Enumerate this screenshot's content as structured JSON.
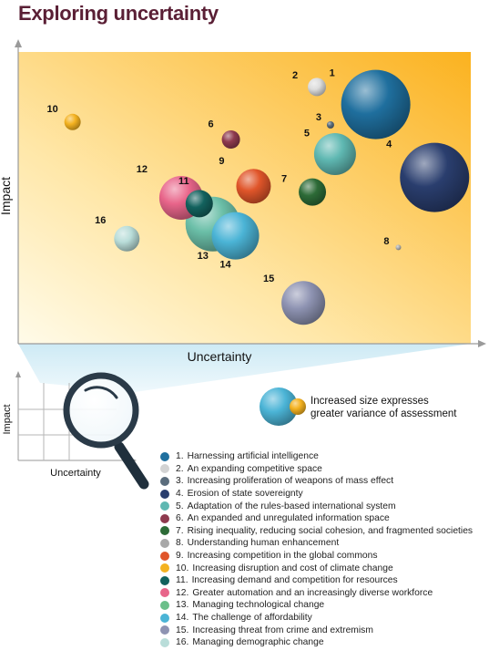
{
  "title": "Exploring uncertainty",
  "chart_data": {
    "type": "scatter",
    "title": "Exploring uncertainty",
    "xlabel": "Uncertainty",
    "ylabel": "Impact",
    "xlim": [
      0,
      100
    ],
    "ylim": [
      0,
      100
    ],
    "size_note": [
      "Increased size expresses",
      "greater variance of assessment"
    ],
    "inset_xlabel": "Uncertainty",
    "inset_ylabel": "Impact",
    "points": [
      {
        "id": "1",
        "label": "Harnessing artificial intelligence",
        "x": 79,
        "y": 82,
        "size": 38,
        "color": "#1f6f9e"
      },
      {
        "id": "2",
        "label": "An expanding competitive space",
        "x": 66,
        "y": 88,
        "size": 10,
        "color": "#dddddd"
      },
      {
        "id": "3",
        "label": "Increasing proliferation of weapons of mass effect",
        "x": 69,
        "y": 75,
        "size": 4,
        "color": "#5a6c7c"
      },
      {
        "id": "4",
        "label": "Erosion of state sovereignty",
        "x": 92,
        "y": 57,
        "size": 38,
        "color": "#2a3e6e"
      },
      {
        "id": "5",
        "label": "Adaptation of the rules-based international system",
        "x": 70,
        "y": 65,
        "size": 23,
        "color": "#5fb8b2"
      },
      {
        "id": "6",
        "label": "An expanded and unregulated information space",
        "x": 47,
        "y": 70,
        "size": 10,
        "color": "#8e3a4e"
      },
      {
        "id": "7",
        "label": "Rising inequality, reducing social cohesion, and fragmented societies",
        "x": 65,
        "y": 52,
        "size": 15,
        "color": "#2d6b37"
      },
      {
        "id": "8",
        "label": "Understanding human enhancement",
        "x": 84,
        "y": 33,
        "size": 3,
        "color": "#b0b0b0"
      },
      {
        "id": "9",
        "label": "Increasing competition in the global commons",
        "x": 52,
        "y": 54,
        "size": 19,
        "color": "#e0552a"
      },
      {
        "id": "10",
        "label": "Increasing disruption and cost of climate change",
        "x": 12,
        "y": 76,
        "size": 9,
        "color": "#f4b220"
      },
      {
        "id": "11",
        "label": "Increasing demand and competition for resources",
        "x": 40,
        "y": 48,
        "size": 15,
        "color": "#13625e"
      },
      {
        "id": "12",
        "label": "Greater automation and an increasingly diverse workforce",
        "x": 36,
        "y": 50,
        "size": 24,
        "color": "#e8658a"
      },
      {
        "id": "13",
        "label": "Managing technological change",
        "x": 43,
        "y": 41,
        "size": 30,
        "color": "#6bbfa8"
      },
      {
        "id": "14",
        "label": "The challenge of affordability",
        "x": 48,
        "y": 37,
        "size": 26,
        "color": "#4bb4d6"
      },
      {
        "id": "15",
        "label": "Increasing threat from crime and extremism",
        "x": 63,
        "y": 14,
        "size": 24,
        "color": "#8e93b2"
      },
      {
        "id": "16",
        "label": "Managing demographic change",
        "x": 24,
        "y": 36,
        "size": 14,
        "color": "#b9ddd9"
      }
    ]
  },
  "legend": [
    {
      "num": "1.",
      "label": "Harnessing artificial intelligence",
      "color": "#1f6f9e"
    },
    {
      "num": "2.",
      "label": "An expanding competitive space",
      "color": "#d3d3d3"
    },
    {
      "num": "3.",
      "label": "Increasing proliferation of weapons of mass effect",
      "color": "#5a6c7c"
    },
    {
      "num": "4.",
      "label": "Erosion of state sovereignty",
      "color": "#2a3e6e"
    },
    {
      "num": "5.",
      "label": "Adaptation of the rules-based international system",
      "color": "#5fb8b2"
    },
    {
      "num": "6.",
      "label": "An expanded and unregulated information space",
      "color": "#8e3a4e"
    },
    {
      "num": "7.",
      "label": "Rising inequality, reducing social cohesion, and fragmented societies",
      "color": "#2d6b37"
    },
    {
      "num": "8.",
      "label": "Understanding human enhancement",
      "color": "#a8a8a8"
    },
    {
      "num": "9.",
      "label": "Increasing competition in the global commons",
      "color": "#e0552a"
    },
    {
      "num": "10.",
      "label": "Increasing disruption and cost of climate change",
      "color": "#f4b220"
    },
    {
      "num": "11.",
      "label": "Increasing demand and competition for resources",
      "color": "#13625e"
    },
    {
      "num": "12.",
      "label": "Greater automation and an increasingly diverse workforce",
      "color": "#e8658a"
    },
    {
      "num": "13.",
      "label": "Managing technological change",
      "color": "#6bbf8a"
    },
    {
      "num": "14.",
      "label": "The challenge of affordability",
      "color": "#4bb4d6"
    },
    {
      "num": "15.",
      "label": "Increasing threat from crime and extremism",
      "color": "#8e93b2"
    },
    {
      "num": "16.",
      "label": "Managing demographic change",
      "color": "#b9ddd9"
    }
  ]
}
